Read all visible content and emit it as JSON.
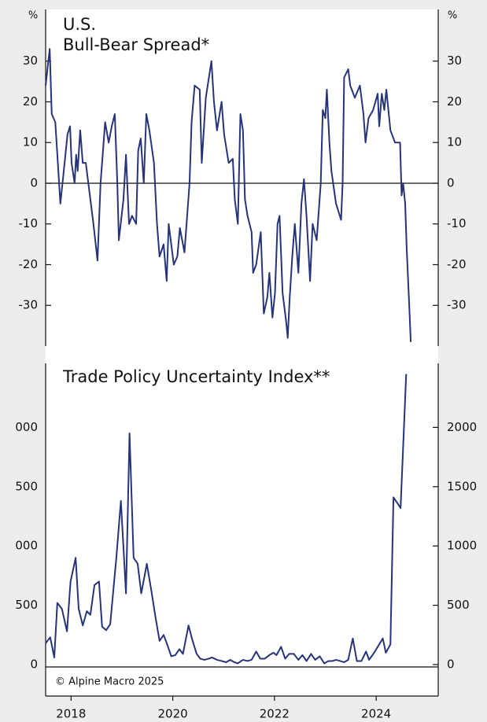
{
  "chart_data": [
    {
      "type": "line",
      "title": [
        "U.S.",
        "Bull-Bear Spread*"
      ],
      "ylabel": "%",
      "y2label": "%",
      "color": "#27347a",
      "zero_line": true,
      "xlim": [
        2017.5,
        2025.22
      ],
      "ylim": [
        -40,
        42.7
      ],
      "yticks": [
        30,
        20,
        10,
        0,
        -10,
        -20,
        -30
      ],
      "y2lim": [
        -40,
        42.7
      ],
      "y2ticks": [
        30,
        20,
        10,
        0,
        -10,
        -20,
        -30
      ],
      "x": [
        2017.5,
        2017.58,
        2017.62,
        2017.69,
        2017.75,
        2017.79,
        2017.84,
        2017.93,
        2017.98,
        2018.01,
        2018.07,
        2018.1,
        2018.13,
        2018.18,
        2018.23,
        2018.29,
        2018.36,
        2018.44,
        2018.52,
        2018.58,
        2018.67,
        2018.74,
        2018.8,
        2018.86,
        2018.91,
        2018.94,
        2019.03,
        2019.08,
        2019.14,
        2019.2,
        2019.28,
        2019.32,
        2019.37,
        2019.43,
        2019.48,
        2019.54,
        2019.63,
        2019.69,
        2019.74,
        2019.82,
        2019.88,
        2019.92,
        2020.02,
        2020.09,
        2020.14,
        2020.23,
        2020.33,
        2020.37,
        2020.43,
        2020.53,
        2020.57,
        2020.65,
        2020.76,
        2020.81,
        2020.87,
        2020.96,
        2021.01,
        2021.1,
        2021.18,
        2021.22,
        2021.28,
        2021.33,
        2021.38,
        2021.42,
        2021.47,
        2021.55,
        2021.58,
        2021.64,
        2021.73,
        2021.79,
        2021.86,
        2021.9,
        2021.96,
        2022.01,
        2022.06,
        2022.1,
        2022.16,
        2022.23,
        2022.26,
        2022.3,
        2022.35,
        2022.4,
        2022.47,
        2022.53,
        2022.58,
        2022.63,
        2022.7,
        2022.75,
        2022.83,
        2022.91,
        2022.95,
        2023.0,
        2023.03,
        2023.08,
        2023.12,
        2023.21,
        2023.31,
        2023.34,
        2023.37,
        2023.45,
        2023.49,
        2023.58,
        2023.68,
        2023.75,
        2023.79,
        2023.85,
        2023.94,
        2024.03,
        2024.06,
        2024.11,
        2024.16,
        2024.2,
        2024.28,
        2024.37,
        2024.47,
        2024.5,
        2024.53,
        2024.57,
        2024.6,
        2024.65,
        2024.68
      ],
      "values": [
        24,
        33,
        17,
        15,
        3,
        -5,
        1,
        12,
        14,
        5,
        0,
        7,
        3,
        13,
        5,
        5,
        -2,
        -10,
        -19,
        0,
        15,
        10,
        14,
        17,
        0,
        -14,
        -4,
        7,
        -10,
        -8,
        -10,
        8,
        11,
        0,
        17,
        13,
        5,
        -10,
        -18,
        -15,
        -24,
        -10,
        -20,
        -18,
        -11,
        -17,
        0,
        15,
        24,
        23,
        5,
        21,
        30,
        20,
        13,
        20,
        12,
        5,
        6,
        -4,
        -10,
        17,
        13,
        -4,
        -8,
        -12,
        -22,
        -20,
        -12,
        -32,
        -28,
        -22,
        -33,
        -27,
        -10,
        -8,
        -27,
        -34,
        -38,
        -28,
        -18,
        -10,
        -22,
        -5,
        1,
        -8,
        -24,
        -10,
        -14,
        0,
        18,
        16,
        23,
        10,
        3,
        -5,
        -9,
        0,
        26,
        28,
        24,
        21,
        24,
        17,
        10,
        16,
        18,
        22,
        14,
        22,
        18,
        23,
        13,
        10,
        10,
        -3,
        0,
        -5,
        -16,
        -30,
        -39
      ]
    },
    {
      "type": "line",
      "title": [
        "Trade Policy Uncertainty Index**"
      ],
      "color": "#27347a",
      "xlim": [
        2017.5,
        2025.22
      ],
      "xticks": [
        2018,
        2020,
        2022,
        2024
      ],
      "ylim": [
        -20,
        2540
      ],
      "yticks": [
        0,
        500,
        {
          "value": 1000,
          "label": "000"
        },
        {
          "value": 1500,
          "label": "500"
        },
        {
          "value": 2000,
          "label": "000"
        }
      ],
      "y2lim": [
        -20,
        2540
      ],
      "y2ticks": [
        0,
        500,
        1000,
        1500,
        2000
      ],
      "x": [
        2017.5,
        2017.59,
        2017.67,
        2017.73,
        2017.82,
        2017.92,
        2017.99,
        2018.09,
        2018.15,
        2018.23,
        2018.31,
        2018.38,
        2018.46,
        2018.55,
        2018.61,
        2018.69,
        2018.77,
        2018.89,
        2018.98,
        2019.08,
        2019.15,
        2019.23,
        2019.31,
        2019.38,
        2019.49,
        2019.58,
        2019.66,
        2019.74,
        2019.82,
        2019.89,
        2019.97,
        2020.05,
        2020.13,
        2020.2,
        2020.31,
        2020.39,
        2020.47,
        2020.54,
        2020.62,
        2020.71,
        2020.77,
        2020.87,
        2020.96,
        2021.05,
        2021.13,
        2021.21,
        2021.28,
        2021.38,
        2021.47,
        2021.55,
        2021.64,
        2021.72,
        2021.81,
        2021.9,
        2021.98,
        2022.04,
        2022.13,
        2022.21,
        2022.29,
        2022.38,
        2022.47,
        2022.55,
        2022.63,
        2022.72,
        2022.8,
        2022.89,
        2022.98,
        2023.06,
        2023.14,
        2023.21,
        2023.29,
        2023.37,
        2023.45,
        2023.54,
        2023.62,
        2023.71,
        2023.8,
        2023.86,
        2023.96,
        2024.03,
        2024.13,
        2024.19,
        2024.28,
        2024.34,
        2024.42,
        2024.48,
        2024.59
      ],
      "values": [
        180,
        230,
        60,
        520,
        470,
        280,
        700,
        900,
        470,
        330,
        450,
        420,
        670,
        700,
        320,
        290,
        340,
        900,
        1380,
        600,
        1950,
        900,
        850,
        600,
        850,
        620,
        400,
        200,
        250,
        170,
        70,
        80,
        130,
        90,
        330,
        200,
        90,
        50,
        40,
        50,
        60,
        40,
        30,
        20,
        40,
        20,
        10,
        40,
        30,
        40,
        110,
        50,
        50,
        80,
        100,
        80,
        150,
        50,
        90,
        90,
        40,
        80,
        30,
        90,
        40,
        70,
        10,
        30,
        30,
        40,
        30,
        20,
        40,
        220,
        30,
        30,
        110,
        40,
        100,
        150,
        220,
        100,
        170,
        1410,
        1360,
        1320,
        2450
      ]
    }
  ],
  "source": "© Alpine Macro 2025"
}
